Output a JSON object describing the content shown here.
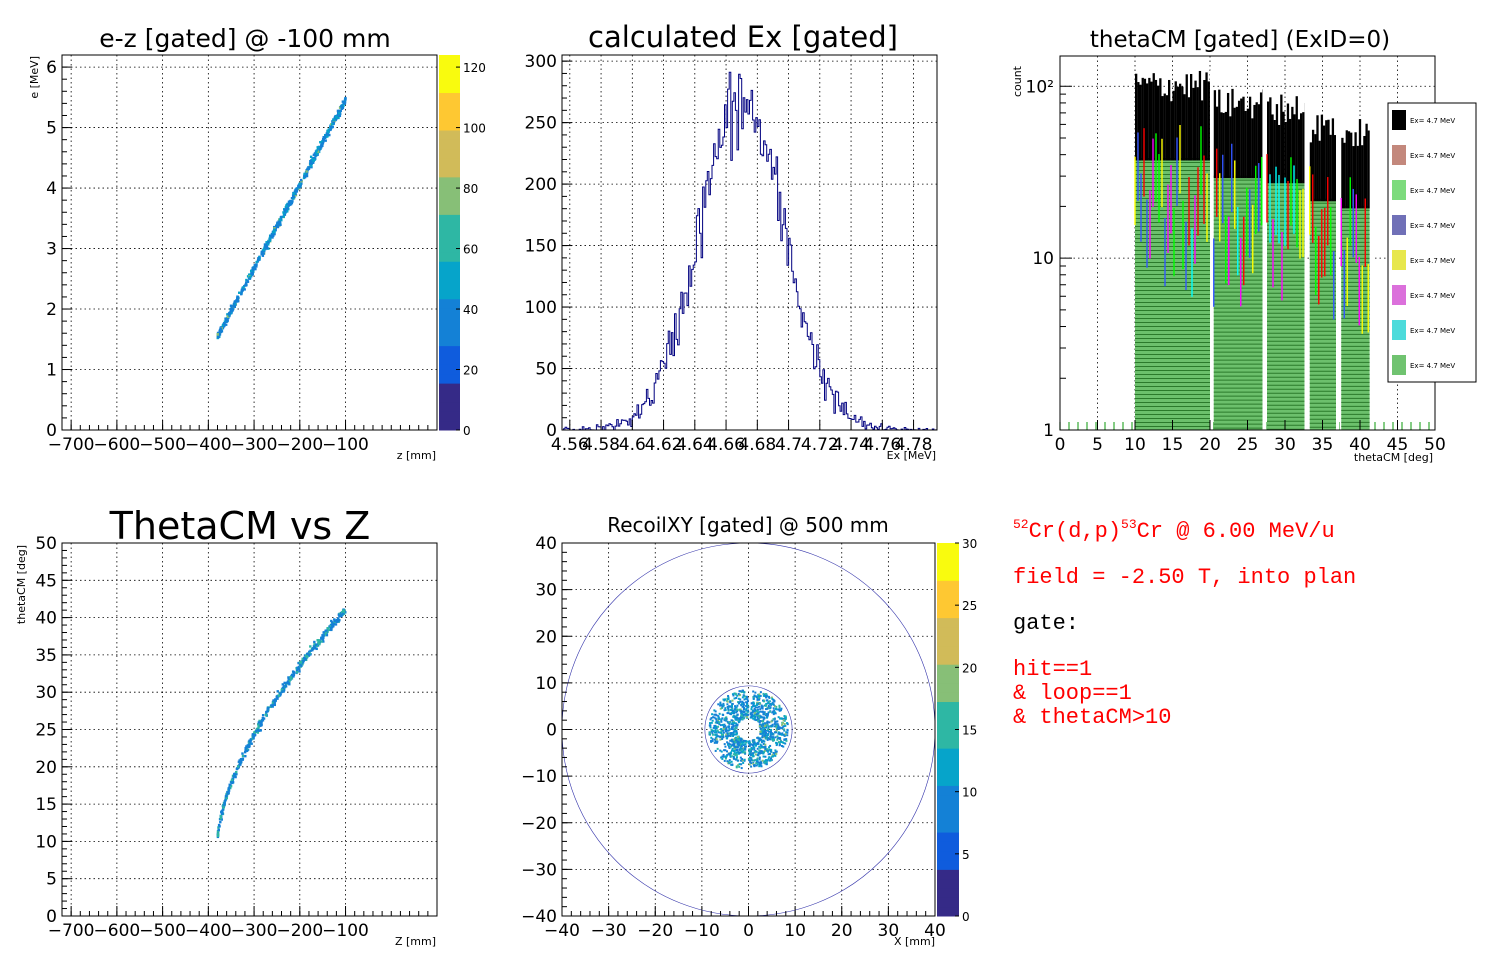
{
  "chart_data": [
    {
      "type": "heatmap",
      "title": "e-z [gated] @  -100 mm",
      "xlabel": "z [mm]",
      "ylabel": "e [MeV]",
      "xlim": [
        -720,
        100
      ],
      "ylim": [
        0,
        6.2
      ],
      "xticks": [
        "−700",
        "−600",
        "−500",
        "−400",
        "−300",
        "−200",
        "−100"
      ],
      "yticks": [
        "0",
        "1",
        "2",
        "3",
        "4",
        "5",
        "6"
      ],
      "palette_ticks": [
        "0",
        "20",
        "40",
        "60",
        "80",
        "100",
        "120"
      ],
      "grid": true,
      "band": {
        "z_start": -380,
        "z_end": -100,
        "e_start": 1.55,
        "e_end": 5.45
      }
    },
    {
      "type": "line",
      "title": "calculated Ex [gated]",
      "xlabel": "Ex [MeV]",
      "ylabel": "",
      "xlim": [
        4.555,
        4.795
      ],
      "ylim": [
        0,
        305
      ],
      "xticks": [
        "4.56",
        "4.58",
        "4.6",
        "4.62",
        "4.64",
        "4.66",
        "4.68",
        "4.7",
        "4.72",
        "4.74",
        "4.76",
        "4.78"
      ],
      "yticks": [
        "0",
        "50",
        "100",
        "150",
        "200",
        "250",
        "300"
      ],
      "grid": true,
      "series": [
        {
          "mean": 4.67,
          "sigma": 0.0275,
          "peak": 265
        }
      ]
    },
    {
      "type": "bar",
      "title": "thetaCM [gated] (ExID=0)",
      "xlabel": "thetaCM [deg]",
      "ylabel": "count",
      "xlim": [
        0,
        50
      ],
      "ylim": [
        1,
        150
      ],
      "log_y": true,
      "xticks": [
        "0",
        "5",
        "10",
        "15",
        "20",
        "25",
        "30",
        "35",
        "40",
        "45",
        "50"
      ],
      "yticks": [
        "1",
        "10",
        "10²"
      ],
      "grid": true,
      "segments": [
        [
          10,
          20
        ],
        [
          20.5,
          27
        ],
        [
          27.6,
          32.6
        ],
        [
          33.3,
          36.8
        ],
        [
          37.5,
          41.3
        ]
      ],
      "segment_levels": [
        95,
        75,
        70,
        55,
        50
      ],
      "legend": {
        "position": "right",
        "entries": [
          "Ex=  4.7 MeV",
          "Ex=  4.7 MeV",
          "Ex=  4.7 MeV",
          "Ex=  4.7 MeV",
          "Ex=  4.7 MeV",
          "Ex=  4.7 MeV",
          "Ex=  4.7 MeV",
          "Ex=  4.7 MeV"
        ]
      }
    },
    {
      "type": "scatter",
      "title": "ThetaCM vs Z",
      "xlabel": "Z [mm]",
      "ylabel": "thetaCM [deg]",
      "xlim": [
        -720,
        100
      ],
      "ylim": [
        0,
        50
      ],
      "xticks": [
        "−700",
        "−600",
        "−500",
        "−400",
        "−300",
        "−200",
        "−100"
      ],
      "yticks": [
        "0",
        "5",
        "10",
        "15",
        "20",
        "25",
        "30",
        "35",
        "40",
        "45",
        "50"
      ],
      "grid": true,
      "curve": {
        "z_start": -380,
        "z_end": -100,
        "theta_start": 10,
        "theta_end": 41
      }
    },
    {
      "type": "heatmap",
      "title": "RecoilXY [gated] @  500 mm",
      "xlabel": "X [mm]",
      "ylabel": "",
      "xlim": [
        -40,
        40
      ],
      "ylim": [
        -40,
        40
      ],
      "xticks": [
        "−40",
        "−30",
        "−20",
        "−10",
        "0",
        "10",
        "20",
        "30",
        "40"
      ],
      "yticks": [
        "−40",
        "−30",
        "−20",
        "−10",
        "0",
        "10",
        "20",
        "30",
        "40"
      ],
      "palette_ticks": [
        "0",
        "5",
        "10",
        "15",
        "20",
        "25",
        "30"
      ],
      "grid": true,
      "outer_circle_radius": 40,
      "ring": {
        "inner_radius": 2.5,
        "outer_radius": 8.5,
        "sectors": 6
      }
    }
  ],
  "info": {
    "line1_target_mass": "52",
    "line1_target": "Cr(d,p)",
    "line1_product_mass": "53",
    "line1_rest": "Cr @ 6.00 MeV/u",
    "line2": "field = -2.50 T, into plan",
    "line3": "gate:",
    "line4": "hit==1",
    "line5": "& loop==1",
    "line6": "& thetaCM>10"
  }
}
